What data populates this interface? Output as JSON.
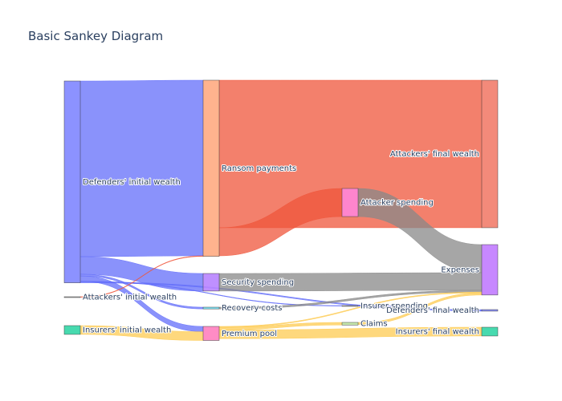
{
  "title": "Basic Sankey Diagram",
  "chart_data": {
    "type": "sankey",
    "title": "Basic Sankey Diagram",
    "nodes": [
      {
        "label": "Defenders' initial wealth",
        "color": "#7f86ff"
      },
      {
        "label": "Attackers' initial wealth",
        "color": "#aaaaaa"
      },
      {
        "label": "Insurers' initial wealth",
        "color": "#33d6a6"
      },
      {
        "label": "Ransom payments",
        "color": "#ffab82"
      },
      {
        "label": "Security spending",
        "color": "#b884ff"
      },
      {
        "label": "Recovery costs",
        "color": "#6fdcf0"
      },
      {
        "label": "Premium pool",
        "color": "#ff7fbf"
      },
      {
        "label": "Attacker spending",
        "color": "#ff85d8"
      },
      {
        "label": "Insurer spending",
        "color": "#aaaaaa"
      },
      {
        "label": "Claims",
        "color": "#bfe3a1"
      },
      {
        "label": "Attackers' final wealth",
        "color": "#f27d6c"
      },
      {
        "label": "Expenses",
        "color": "#c17bff"
      },
      {
        "label": "Defenders' final wealth",
        "color": "#7f86ff"
      },
      {
        "label": "Insurers' final wealth",
        "color": "#33d6a6"
      }
    ],
    "links": [
      {
        "source": 0,
        "target": 3,
        "value": 100,
        "color": "#636efa"
      },
      {
        "source": 0,
        "target": 4,
        "value": 10,
        "color": "#636efa"
      },
      {
        "source": 0,
        "target": 5,
        "value": 1,
        "color": "#636efa"
      },
      {
        "source": 0,
        "target": 6,
        "value": 3,
        "color": "#636efa"
      },
      {
        "source": 0,
        "target": 8,
        "value": 0.3,
        "color": "#636efa"
      },
      {
        "source": 0,
        "target": 12,
        "value": 0.6,
        "color": "#636efa"
      },
      {
        "source": 1,
        "target": 3,
        "value": 0.3,
        "color": "#ef553b"
      },
      {
        "source": 2,
        "target": 6,
        "value": 5,
        "color": "#fecb52"
      },
      {
        "source": 3,
        "target": 10,
        "value": 84,
        "color": "#ef553b"
      },
      {
        "source": 3,
        "target": 7,
        "value": 16,
        "color": "#ef553b"
      },
      {
        "source": 7,
        "target": 11,
        "value": 16,
        "color": "#888888"
      },
      {
        "source": 4,
        "target": 11,
        "value": 10,
        "color": "#888888"
      },
      {
        "source": 5,
        "target": 11,
        "value": 1,
        "color": "#888888"
      },
      {
        "source": 6,
        "target": 11,
        "value": 0.5,
        "color": "#fecb52"
      },
      {
        "source": 6,
        "target": 9,
        "value": 1.5,
        "color": "#fecb52"
      },
      {
        "source": 6,
        "target": 13,
        "value": 5,
        "color": "#fecb52"
      },
      {
        "source": 9,
        "target": 11,
        "value": 1.2,
        "color": "#fecb52"
      },
      {
        "source": 8,
        "target": 12,
        "value": 0.3,
        "color": "#636efa"
      }
    ]
  }
}
